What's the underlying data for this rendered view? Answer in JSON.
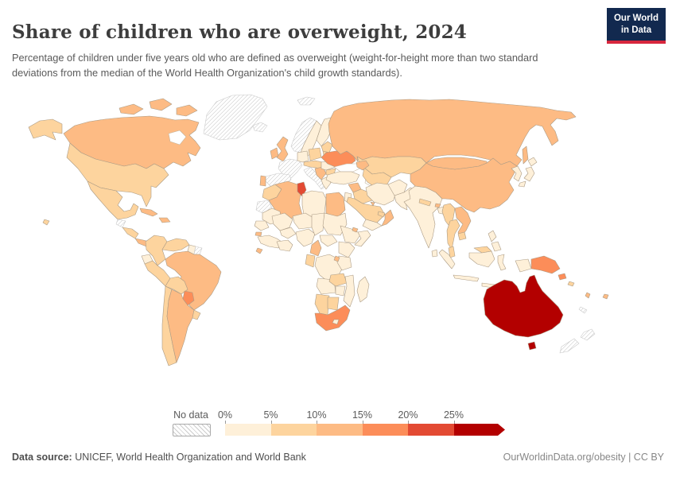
{
  "header": {
    "title": "Share of children who are overweight, 2024",
    "subtitle": "Percentage of children under five years old who are defined as overweight (weight-for-height more than two standard deviations from the median of the World Health Organization's child growth standards)."
  },
  "logo": {
    "line1": "Our World",
    "line2": "in Data",
    "bg_color": "#12294f",
    "accent_color": "#d7263d"
  },
  "footer": {
    "source_label": "Data source:",
    "source_text": " UNICEF, World Health Organization and World Bank",
    "credit": "OurWorldinData.org/obesity | CC BY"
  },
  "chart_data": {
    "type": "choropleth",
    "title": "Share of children who are overweight, 2024",
    "unit": "% of children under five",
    "legend_no_data_label": "No data",
    "tick_labels": [
      "0%",
      "5%",
      "10%",
      "15%",
      "20%",
      "25%"
    ],
    "bin_ranges": [
      "0-5%",
      "5-10%",
      "10-15%",
      "15-20%",
      "20-25%",
      "25%+"
    ],
    "bin_colors": [
      "#fef0d9",
      "#fdd49e",
      "#fdbb84",
      "#fc8d59",
      "#e34a33",
      "#b30000"
    ],
    "border_color": "#ab9b85",
    "nodata_border_color": "#c9c9c9",
    "regions": [
      {
        "id": "greenland",
        "name": "Greenland",
        "bin": -1
      },
      {
        "id": "iceland",
        "name": "Iceland",
        "bin": -1
      },
      {
        "id": "svalbard",
        "name": "Svalbard",
        "bin": -1
      },
      {
        "id": "canada",
        "name": "Canada",
        "bin": 2
      },
      {
        "id": "usa",
        "name": "United States",
        "bin": 1
      },
      {
        "id": "mexico",
        "name": "Mexico",
        "bin": 1
      },
      {
        "id": "guatemala",
        "name": "Guatemala",
        "bin": -1
      },
      {
        "id": "honduras-nicaragua",
        "name": "Honduras & Nicaragua",
        "bin": 1
      },
      {
        "id": "costa-rica-panama",
        "name": "Costa Rica & Panama",
        "bin": 2
      },
      {
        "id": "cuba",
        "name": "Cuba",
        "bin": 2
      },
      {
        "id": "hispaniola",
        "name": "Dominican Republic & Haiti",
        "bin": 2
      },
      {
        "id": "colombia",
        "name": "Colombia",
        "bin": 1
      },
      {
        "id": "venezuela",
        "name": "Venezuela",
        "bin": 1
      },
      {
        "id": "guyana",
        "name": "Guyana",
        "bin": 0
      },
      {
        "id": "suriname",
        "name": "Suriname",
        "bin": -1
      },
      {
        "id": "ecuador",
        "name": "Ecuador",
        "bin": 0
      },
      {
        "id": "peru",
        "name": "Peru",
        "bin": 1
      },
      {
        "id": "brazil",
        "name": "Brazil",
        "bin": 2
      },
      {
        "id": "bolivia",
        "name": "Bolivia",
        "bin": 1
      },
      {
        "id": "paraguay",
        "name": "Paraguay",
        "bin": 3
      },
      {
        "id": "chile",
        "name": "Chile",
        "bin": 1
      },
      {
        "id": "argentina",
        "name": "Argentina",
        "bin": 2
      },
      {
        "id": "uruguay",
        "name": "Uruguay",
        "bin": 1
      },
      {
        "id": "norway",
        "name": "Norway",
        "bin": -1
      },
      {
        "id": "sweden",
        "name": "Sweden",
        "bin": 0
      },
      {
        "id": "finland",
        "name": "Finland",
        "bin": 0
      },
      {
        "id": "denmark",
        "name": "Denmark",
        "bin": 1
      },
      {
        "id": "uk",
        "name": "United Kingdom",
        "bin": 2
      },
      {
        "id": "ireland",
        "name": "Ireland",
        "bin": 2
      },
      {
        "id": "france",
        "name": "France",
        "bin": -1
      },
      {
        "id": "spain",
        "name": "Spain",
        "bin": -1
      },
      {
        "id": "portugal",
        "name": "Portugal",
        "bin": 2
      },
      {
        "id": "germany",
        "name": "Germany",
        "bin": 0
      },
      {
        "id": "poland",
        "name": "Poland",
        "bin": 1
      },
      {
        "id": "central-europe",
        "name": "Central Europe",
        "bin": 1
      },
      {
        "id": "italy",
        "name": "Italy",
        "bin": -1
      },
      {
        "id": "balkans",
        "name": "Western Balkans",
        "bin": 2
      },
      {
        "id": "romania",
        "name": "Romania",
        "bin": 0
      },
      {
        "id": "bulgaria",
        "name": "Bulgaria",
        "bin": 1
      },
      {
        "id": "greece",
        "name": "Greece",
        "bin": 0
      },
      {
        "id": "baltics",
        "name": "Baltic states",
        "bin": 1
      },
      {
        "id": "belarus",
        "name": "Belarus",
        "bin": 1
      },
      {
        "id": "ukraine",
        "name": "Ukraine",
        "bin": 3
      },
      {
        "id": "russia",
        "name": "Russia",
        "bin": 2
      },
      {
        "id": "kazakhstan",
        "name": "Kazakhstan",
        "bin": 1
      },
      {
        "id": "central-asia",
        "name": "Central Asia",
        "bin": 1
      },
      {
        "id": "caucasus",
        "name": "Caucasus",
        "bin": 2
      },
      {
        "id": "turkey",
        "name": "Turkey",
        "bin": 0
      },
      {
        "id": "syria",
        "name": "Syria",
        "bin": 2
      },
      {
        "id": "iraq",
        "name": "Iraq",
        "bin": 1
      },
      {
        "id": "jordan-israel",
        "name": "Jordan & Israel",
        "bin": 0
      },
      {
        "id": "iran",
        "name": "Iran",
        "bin": 0
      },
      {
        "id": "afghanistan",
        "name": "Afghanistan",
        "bin": 0
      },
      {
        "id": "pakistan",
        "name": "Pakistan",
        "bin": 0
      },
      {
        "id": "saudi-arabia",
        "name": "Saudi Arabia",
        "bin": 1
      },
      {
        "id": "kuwait",
        "name": "Kuwait",
        "bin": 2
      },
      {
        "id": "uae",
        "name": "United Arab Emirates",
        "bin": 1
      },
      {
        "id": "oman",
        "name": "Oman",
        "bin": 2
      },
      {
        "id": "yemen",
        "name": "Yemen",
        "bin": 0
      },
      {
        "id": "india",
        "name": "India",
        "bin": 0
      },
      {
        "id": "sri-lanka",
        "name": "Sri Lanka",
        "bin": 0
      },
      {
        "id": "nepal",
        "name": "Nepal",
        "bin": 1
      },
      {
        "id": "bhutan",
        "name": "Bhutan",
        "bin": 2
      },
      {
        "id": "bangladesh",
        "name": "Bangladesh",
        "bin": 0
      },
      {
        "id": "china",
        "name": "China",
        "bin": 2
      },
      {
        "id": "mongolia",
        "name": "Mongolia",
        "bin": 2
      },
      {
        "id": "korea",
        "name": "Korea",
        "bin": 0
      },
      {
        "id": "japan",
        "name": "Japan",
        "bin": 0
      },
      {
        "id": "myanmar",
        "name": "Myanmar",
        "bin": 1
      },
      {
        "id": "thailand",
        "name": "Thailand",
        "bin": 1
      },
      {
        "id": "laos-vietnam",
        "name": "Laos & Vietnam",
        "bin": 2
      },
      {
        "id": "cambodia",
        "name": "Cambodia",
        "bin": 1
      },
      {
        "id": "malaysia",
        "name": "Malaysia",
        "bin": 1
      },
      {
        "id": "indonesia",
        "name": "Indonesia",
        "bin": 0
      },
      {
        "id": "philippines",
        "name": "Philippines",
        "bin": 0
      },
      {
        "id": "png",
        "name": "Papua New Guinea",
        "bin": 3
      },
      {
        "id": "solomon",
        "name": "Solomon Islands",
        "bin": 1
      },
      {
        "id": "vanuatu",
        "name": "Vanuatu",
        "bin": 2
      },
      {
        "id": "fiji",
        "name": "Fiji",
        "bin": 2
      },
      {
        "id": "new-caledonia",
        "name": "New Caledonia",
        "bin": -1
      },
      {
        "id": "australia",
        "name": "Australia",
        "bin": 5
      },
      {
        "id": "new-zealand",
        "name": "New Zealand",
        "bin": -1
      },
      {
        "id": "morocco",
        "name": "Morocco",
        "bin": 1
      },
      {
        "id": "western-sahara",
        "name": "Western Sahara",
        "bin": -1
      },
      {
        "id": "algeria",
        "name": "Algeria",
        "bin": 2
      },
      {
        "id": "tunisia",
        "name": "Tunisia",
        "bin": 4
      },
      {
        "id": "libya",
        "name": "Libya",
        "bin": 0
      },
      {
        "id": "egypt",
        "name": "Egypt",
        "bin": 2
      },
      {
        "id": "mauritania",
        "name": "Mauritania",
        "bin": 0
      },
      {
        "id": "senegal",
        "name": "Senegal & Gambia",
        "bin": 0
      },
      {
        "id": "guinea-bissau",
        "name": "Guinea-Bissau",
        "bin": 2
      },
      {
        "id": "guinea-coast",
        "name": "Guinea",
        "bin": 0
      },
      {
        "id": "sierra-leone",
        "name": "Sierra Leone & Liberia",
        "bin": 2
      },
      {
        "id": "ivory-ghana",
        "name": "Cote d'Ivoire & Ghana",
        "bin": 0
      },
      {
        "id": "burkina",
        "name": "Burkina Faso",
        "bin": 0
      },
      {
        "id": "mali",
        "name": "Mali",
        "bin": 0
      },
      {
        "id": "niger",
        "name": "Niger",
        "bin": 0
      },
      {
        "id": "nigeria",
        "name": "Nigeria",
        "bin": 0
      },
      {
        "id": "chad",
        "name": "Chad",
        "bin": 0
      },
      {
        "id": "sudan",
        "name": "Sudan",
        "bin": 0
      },
      {
        "id": "cameroon",
        "name": "Cameroon",
        "bin": 2
      },
      {
        "id": "car",
        "name": "Central African Republic",
        "bin": 0
      },
      {
        "id": "ethiopia",
        "name": "Ethiopia",
        "bin": 0
      },
      {
        "id": "djibouti",
        "name": "Djibouti",
        "bin": 2
      },
      {
        "id": "somalia",
        "name": "Somalia",
        "bin": 0
      },
      {
        "id": "kenya-uganda",
        "name": "Kenya & Uganda",
        "bin": 0
      },
      {
        "id": "drc",
        "name": "Democratic Republic of Congo",
        "bin": 0
      },
      {
        "id": "gabon-congo",
        "name": "Gabon & Congo",
        "bin": 1
      },
      {
        "id": "tanzania",
        "name": "Tanzania",
        "bin": 0
      },
      {
        "id": "rwanda-burundi",
        "name": "Rwanda & Burundi",
        "bin": 2
      },
      {
        "id": "angola",
        "name": "Angola",
        "bin": 0
      },
      {
        "id": "zambia",
        "name": "Zambia",
        "bin": 1
      },
      {
        "id": "malawi-mozambique",
        "name": "Malawi & Mozambique",
        "bin": 0
      },
      {
        "id": "zimbabwe",
        "name": "Zimbabwe",
        "bin": 0
      },
      {
        "id": "namibia",
        "name": "Namibia",
        "bin": 1
      },
      {
        "id": "botswana",
        "name": "Botswana",
        "bin": 1
      },
      {
        "id": "south-africa",
        "name": "South Africa",
        "bin": 3
      },
      {
        "id": "lesotho",
        "name": "Lesotho",
        "bin": 0
      },
      {
        "id": "madagascar",
        "name": "Madagascar",
        "bin": 0
      }
    ]
  }
}
